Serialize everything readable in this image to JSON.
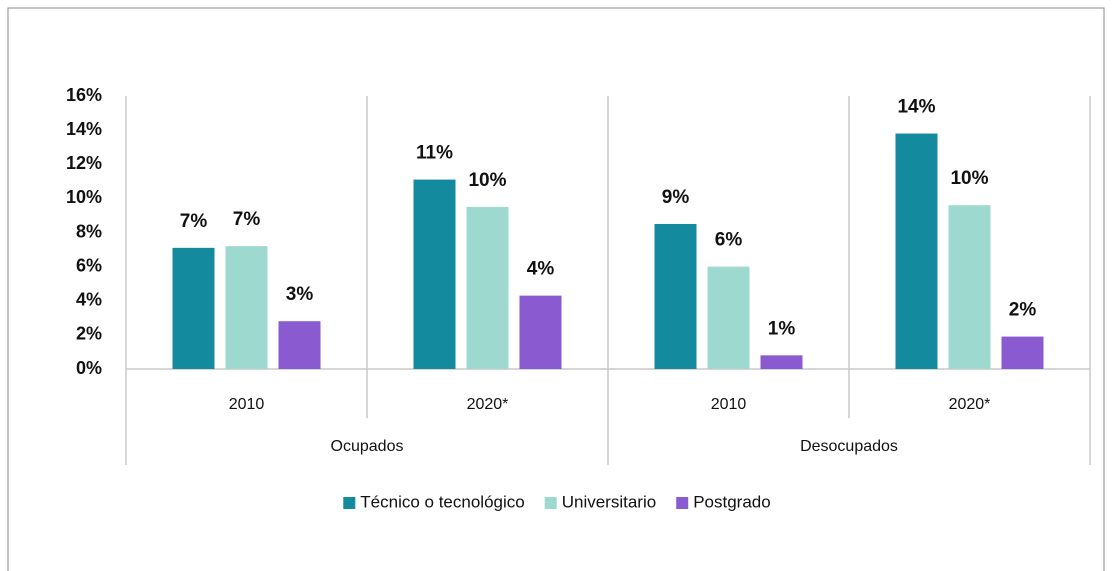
{
  "chart_data": {
    "type": "bar",
    "categories": [
      "2010",
      "2020*",
      "2010",
      "2020*"
    ],
    "groups": [
      "Ocupados",
      "Desocupados"
    ],
    "series": [
      {
        "name": "Técnico o tecnológico",
        "color": "#138a9e",
        "values": [
          7.1,
          11.1,
          8.5,
          13.8
        ],
        "value_labels": [
          "7%",
          "11%",
          "9%",
          "14%"
        ]
      },
      {
        "name": "Universitario",
        "color": "#9ed9d0",
        "values": [
          7.2,
          9.5,
          6.0,
          9.6
        ],
        "value_labels": [
          "7%",
          "10%",
          "6%",
          "10%"
        ]
      },
      {
        "name": "Postgrado",
        "color": "#8a5ad0",
        "values": [
          2.8,
          4.3,
          0.8,
          1.9
        ],
        "value_labels": [
          "3%",
          "4%",
          "1%",
          "2%"
        ]
      }
    ],
    "ylim": [
      0,
      16
    ],
    "yticks": [
      {
        "value": 0,
        "label": "0%"
      },
      {
        "value": 2,
        "label": "2%"
      },
      {
        "value": 4,
        "label": "4%"
      },
      {
        "value": 6,
        "label": "6%"
      },
      {
        "value": 8,
        "label": "8%"
      },
      {
        "value": 10,
        "label": "10%"
      },
      {
        "value": 12,
        "label": "12%"
      },
      {
        "value": 14,
        "label": "14%"
      },
      {
        "value": 16,
        "label": "16%"
      }
    ],
    "grid": false,
    "legend": "bottom"
  }
}
